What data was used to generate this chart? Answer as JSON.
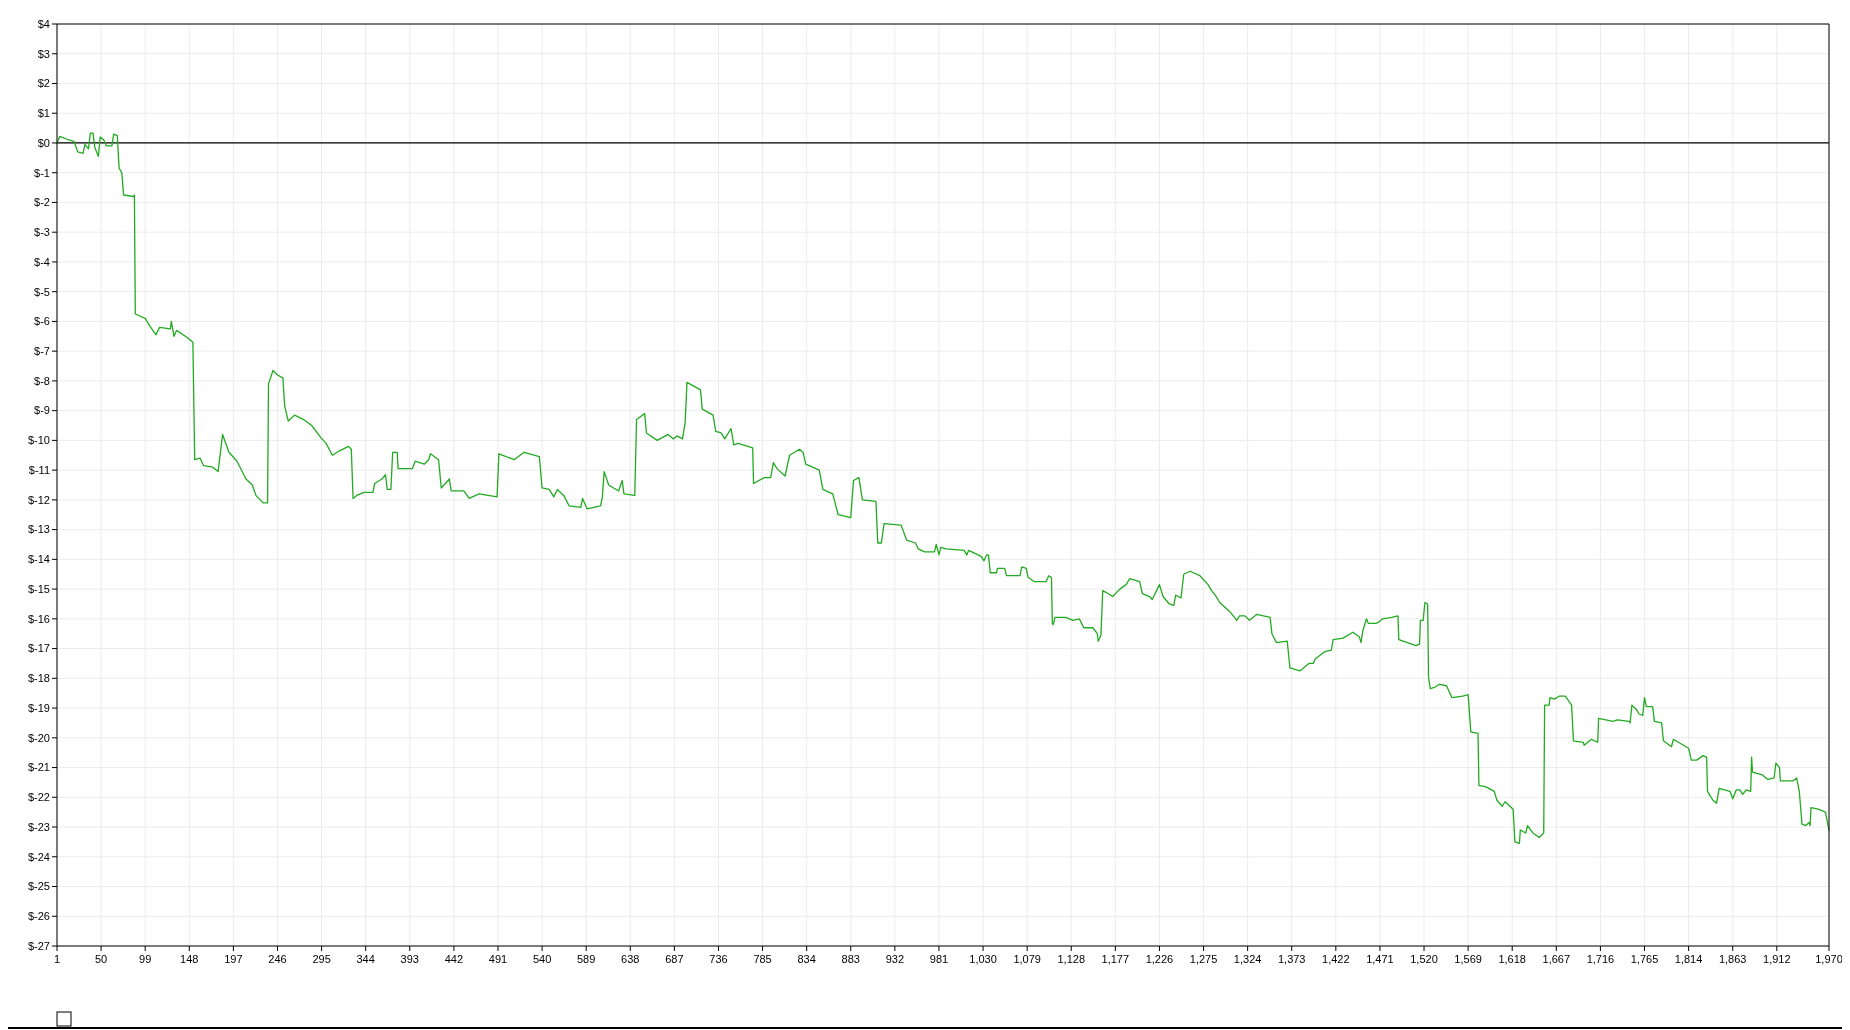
{
  "chart_data": {
    "type": "line",
    "grid": true,
    "xlim": [
      1,
      1970
    ],
    "ylim": [
      -27,
      4
    ],
    "xticks": [
      1,
      50,
      99,
      148,
      197,
      246,
      295,
      344,
      393,
      442,
      491,
      540,
      589,
      638,
      687,
      736,
      785,
      834,
      883,
      932,
      981,
      {
        "value": 1030,
        "label": "1,030"
      },
      {
        "value": 1079,
        "label": "1,079"
      },
      {
        "value": 1128,
        "label": "1,128"
      },
      {
        "value": 1177,
        "label": "1,177"
      },
      {
        "value": 1226,
        "label": "1,226"
      },
      {
        "value": 1275,
        "label": "1,275"
      },
      {
        "value": 1324,
        "label": "1,324"
      },
      {
        "value": 1373,
        "label": "1,373"
      },
      {
        "value": 1422,
        "label": "1,422"
      },
      {
        "value": 1471,
        "label": "1,471"
      },
      {
        "value": 1520,
        "label": "1,520"
      },
      {
        "value": 1569,
        "label": "1,569"
      },
      {
        "value": 1618,
        "label": "1,618"
      },
      {
        "value": 1667,
        "label": "1,667"
      },
      {
        "value": 1716,
        "label": "1,716"
      },
      {
        "value": 1765,
        "label": "1,765"
      },
      {
        "value": 1814,
        "label": "1,814"
      },
      {
        "value": 1863,
        "label": "1,863"
      },
      {
        "value": 1912,
        "label": "1,912"
      },
      {
        "value": 1970,
        "label": "1,970"
      }
    ],
    "yticks": [
      {
        "value": 4,
        "label": "$4"
      },
      {
        "value": 3,
        "label": "$3"
      },
      {
        "value": 2,
        "label": "$2"
      },
      {
        "value": 1,
        "label": "$1"
      },
      {
        "value": 0,
        "label": "$0"
      },
      {
        "value": -1,
        "label": "$-1"
      },
      {
        "value": -2,
        "label": "$-2"
      },
      {
        "value": -3,
        "label": "$-3"
      },
      {
        "value": -4,
        "label": "$-4"
      },
      {
        "value": -5,
        "label": "$-5"
      },
      {
        "value": -6,
        "label": "$-6"
      },
      {
        "value": -7,
        "label": "$-7"
      },
      {
        "value": -8,
        "label": "$-8"
      },
      {
        "value": -9,
        "label": "$-9"
      },
      {
        "value": -10,
        "label": "$-10"
      },
      {
        "value": -11,
        "label": "$-11"
      },
      {
        "value": -12,
        "label": "$-12"
      },
      {
        "value": -13,
        "label": "$-13"
      },
      {
        "value": -14,
        "label": "$-14"
      },
      {
        "value": -15,
        "label": "$-15"
      },
      {
        "value": -16,
        "label": "$-16"
      },
      {
        "value": -17,
        "label": "$-17"
      },
      {
        "value": -18,
        "label": "$-18"
      },
      {
        "value": -19,
        "label": "$-19"
      },
      {
        "value": -20,
        "label": "$-20"
      },
      {
        "value": -21,
        "label": "$-21"
      },
      {
        "value": -22,
        "label": "$-22"
      },
      {
        "value": -23,
        "label": "$-23"
      },
      {
        "value": -24,
        "label": "$-24"
      },
      {
        "value": -25,
        "label": "$-25"
      },
      {
        "value": -26,
        "label": "$-26"
      },
      {
        "value": -27,
        "label": "$-27"
      }
    ],
    "ref_lines": [
      {
        "axis": "y",
        "value": 0,
        "color": "#000000"
      }
    ],
    "series": [
      {
        "color": "#22aa22",
        "x": [
          1,
          4,
          14,
          20,
          24,
          30,
          32,
          36,
          38,
          41,
          43,
          47,
          49,
          53,
          56,
          62,
          64,
          68,
          70,
          73,
          75,
          86,
          87,
          88,
          99,
          104,
          111,
          115,
          127,
          128,
          131,
          134,
          146,
          152,
          154,
          160,
          164,
          174,
          180,
          185,
          192,
          201,
          211,
          218,
          222,
          230,
          235,
          236,
          241,
          246,
          252,
          254,
          258,
          265,
          275,
          284,
          294,
          300,
          307,
          315,
          325,
          328,
          330,
          334,
          342,
          352,
          354,
          362,
          366,
          368,
          372,
          374,
          379,
          380,
          396,
          399,
          409,
          414,
          416,
          425,
          428,
          437,
          439,
          453,
          459,
          470,
          490,
          492,
          509,
          520,
          537,
          540,
          548,
          553,
          557,
          564,
          570,
          583,
          585,
          590,
          605,
          607,
          609,
          614,
          625,
          629,
          631,
          643,
          645,
          654,
          656,
          668,
          680,
          686,
          690,
          696,
          699,
          701,
          710,
          716,
          718,
          730,
          733,
          739,
          743,
          750,
          753,
          758,
          774,
          775,
          787,
          794,
          797,
          801,
          810,
          815,
          826,
          830,
          833,
          848,
          852,
          863,
          869,
          883,
          886,
          892,
          896,
          911,
          913,
          917,
          920,
          939,
          945,
          955,
          958,
          965,
          976,
          978,
          981,
          983,
          989,
          1009,
          1012,
          1014,
          1028,
          1031,
          1034,
          1036,
          1038,
          1045,
          1046,
          1054,
          1056,
          1071,
          1073,
          1078,
          1080,
          1087,
          1100,
          1103,
          1106,
          1107,
          1108,
          1110,
          1122,
          1130,
          1137,
          1142,
          1152,
          1157,
          1158,
          1161,
          1163,
          1166,
          1174,
          1182,
          1189,
          1193,
          1204,
          1207,
          1215,
          1218,
          1226,
          1230,
          1237,
          1242,
          1244,
          1250,
          1253,
          1260,
          1271,
          1280,
          1284,
          1288,
          1293,
          1304,
          1312,
          1315,
          1321,
          1326,
          1334,
          1349,
          1351,
          1356,
          1368,
          1371,
          1382,
          1392,
          1397,
          1399,
          1410,
          1417,
          1419,
          1430,
          1441,
          1448,
          1450,
          1452,
          1456,
          1458,
          1467,
          1470,
          1474,
          1484,
          1491,
          1492,
          1511,
          1515,
          1516,
          1519,
          1521,
          1524,
          1525,
          1527,
          1532,
          1537,
          1545,
          1551,
          1563,
          1569,
          1572,
          1580,
          1581,
          1589,
          1598,
          1601,
          1607,
          1610,
          1619,
          1621,
          1626,
          1627,
          1633,
          1635,
          1641,
          1648,
          1653,
          1654,
          1659,
          1660,
          1665,
          1670,
          1677,
          1684,
          1686,
          1697,
          1698,
          1706,
          1713,
          1714,
          1722,
          1730,
          1735,
          1748,
          1749,
          1751,
          1756,
          1759,
          1763,
          1765,
          1767,
          1774,
          1776,
          1784,
          1786,
          1795,
          1797,
          1814,
          1817,
          1823,
          1830,
          1834,
          1835,
          1841,
          1845,
          1848,
          1854,
          1860,
          1863,
          1867,
          1871,
          1874,
          1878,
          1883,
          1884,
          1885,
          1896,
          1902,
          1909,
          1911,
          1915,
          1916,
          1930,
          1934,
          1937,
          1940,
          1944,
          1948,
          1949,
          1950,
          1958,
          1966,
          1970
        ],
        "values": [
          0,
          0.22,
          0.1,
          0.05,
          -0.3,
          -0.35,
          -0.05,
          -0.2,
          0.33,
          0.33,
          -0.15,
          -0.45,
          0.2,
          0.1,
          -0.1,
          -0.1,
          0.3,
          0.25,
          -0.85,
          -1.0,
          -1.75,
          -1.8,
          -1.75,
          -5.75,
          -5.9,
          -6.15,
          -6.45,
          -6.2,
          -6.25,
          -6.0,
          -6.5,
          -6.3,
          -6.55,
          -6.7,
          -10.65,
          -10.6,
          -10.85,
          -10.9,
          -11.05,
          -9.8,
          -10.4,
          -10.7,
          -11.3,
          -11.5,
          -11.85,
          -12.1,
          -12.1,
          -8.1,
          -7.65,
          -7.8,
          -7.9,
          -8.85,
          -9.35,
          -9.15,
          -9.3,
          -9.5,
          -9.9,
          -10.1,
          -10.5,
          -10.35,
          -10.2,
          -10.3,
          -11.95,
          -11.85,
          -11.75,
          -11.75,
          -11.45,
          -11.3,
          -11.15,
          -11.65,
          -11.65,
          -10.4,
          -10.4,
          -10.95,
          -10.95,
          -10.7,
          -10.8,
          -10.65,
          -10.45,
          -10.65,
          -11.6,
          -11.3,
          -11.7,
          -11.7,
          -11.95,
          -11.8,
          -11.9,
          -10.45,
          -10.65,
          -10.4,
          -10.55,
          -11.6,
          -11.65,
          -11.9,
          -11.65,
          -11.85,
          -12.2,
          -12.25,
          -11.95,
          -12.3,
          -12.2,
          -11.9,
          -11.05,
          -11.5,
          -11.7,
          -11.35,
          -11.8,
          -11.85,
          -9.3,
          -9.1,
          -9.75,
          -10.0,
          -9.8,
          -9.95,
          -9.85,
          -9.95,
          -9.4,
          -8.05,
          -8.2,
          -8.3,
          -8.95,
          -9.15,
          -9.7,
          -9.75,
          -9.95,
          -9.6,
          -10.15,
          -10.1,
          -10.25,
          -11.45,
          -11.25,
          -11.25,
          -10.75,
          -10.95,
          -11.2,
          -10.5,
          -10.3,
          -10.4,
          -10.8,
          -11.0,
          -11.65,
          -11.8,
          -12.5,
          -12.6,
          -11.35,
          -11.25,
          -12.0,
          -12.05,
          -13.45,
          -13.45,
          -12.8,
          -12.85,
          -13.35,
          -13.45,
          -13.65,
          -13.75,
          -13.75,
          -13.5,
          -13.85,
          -13.6,
          -13.65,
          -13.7,
          -13.85,
          -13.7,
          -13.9,
          -14.05,
          -13.85,
          -13.85,
          -14.45,
          -14.45,
          -14.3,
          -14.3,
          -14.55,
          -14.55,
          -14.25,
          -14.3,
          -14.6,
          -14.75,
          -14.75,
          -14.55,
          -14.6,
          -16.15,
          -16.2,
          -15.95,
          -15.95,
          -16.05,
          -16.0,
          -16.3,
          -16.3,
          -16.5,
          -16.75,
          -16.55,
          -15.05,
          -15.1,
          -15.25,
          -15.0,
          -14.85,
          -14.65,
          -14.75,
          -15.15,
          -15.25,
          -15.35,
          -14.85,
          -15.25,
          -15.5,
          -15.55,
          -15.2,
          -15.3,
          -14.5,
          -14.4,
          -14.55,
          -14.85,
          -15.05,
          -15.2,
          -15.45,
          -15.75,
          -16.05,
          -15.9,
          -15.9,
          -16.05,
          -15.85,
          -15.95,
          -16.5,
          -16.8,
          -16.75,
          -17.65,
          -17.75,
          -17.5,
          -17.5,
          -17.35,
          -17.1,
          -17.05,
          -16.7,
          -16.65,
          -16.45,
          -16.6,
          -16.8,
          -16.4,
          -16.0,
          -16.15,
          -16.15,
          -16.1,
          -16.0,
          -15.95,
          -15.9,
          -16.7,
          -16.9,
          -16.85,
          -16.05,
          -16.05,
          -15.45,
          -15.5,
          -17.95,
          -18.35,
          -18.3,
          -18.2,
          -18.25,
          -18.65,
          -18.6,
          -18.55,
          -19.8,
          -19.85,
          -21.6,
          -21.65,
          -21.8,
          -22.1,
          -22.3,
          -22.15,
          -22.4,
          -23.5,
          -23.55,
          -23.1,
          -23.2,
          -22.95,
          -23.2,
          -23.35,
          -23.2,
          -18.9,
          -18.9,
          -18.65,
          -18.7,
          -18.6,
          -18.6,
          -18.9,
          -20.1,
          -20.15,
          -20.25,
          -20.05,
          -20.15,
          -19.35,
          -19.4,
          -19.45,
          -19.4,
          -19.45,
          -19.5,
          -18.9,
          -19.05,
          -19.2,
          -19.25,
          -18.65,
          -18.95,
          -18.95,
          -19.45,
          -19.5,
          -20.1,
          -20.3,
          -20.05,
          -20.35,
          -20.75,
          -20.75,
          -20.6,
          -20.65,
          -21.8,
          -22.1,
          -22.2,
          -21.7,
          -21.75,
          -21.8,
          -22.05,
          -21.75,
          -21.75,
          -21.9,
          -21.75,
          -21.8,
          -20.65,
          -21.15,
          -21.25,
          -21.4,
          -21.35,
          -20.85,
          -21.0,
          -21.45,
          -21.45,
          -21.35,
          -21.8,
          -22.9,
          -22.95,
          -22.85,
          -22.95,
          -22.35,
          -22.4,
          -22.5,
          -23.1
        ]
      }
    ]
  }
}
